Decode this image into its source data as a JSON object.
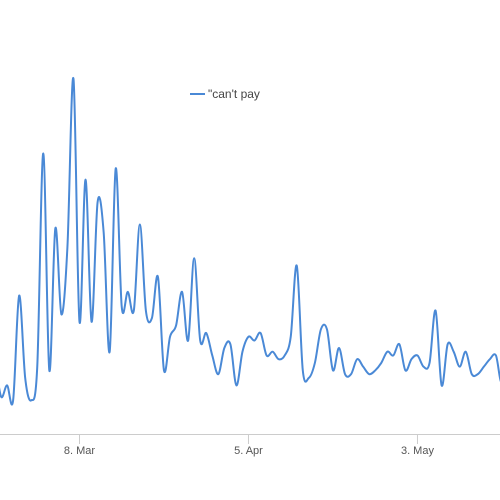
{
  "chart_data": {
    "type": "line",
    "title": "",
    "xlabel": "",
    "ylabel": "",
    "legend": {
      "position": "top-center"
    },
    "grid": false,
    "x_ticks": [
      "8. Mar",
      "5. Apr",
      "3. May"
    ],
    "x_range": [
      "2016-02-23",
      "2016-05-18"
    ],
    "y_range": [
      0,
      100
    ],
    "series": [
      {
        "name": "\"can't pay",
        "color": "#4a89d6",
        "x": [
          "2016-02-23",
          "2016-02-24",
          "2016-02-25",
          "2016-02-26",
          "2016-02-27",
          "2016-02-28",
          "2016-02-29",
          "2016-03-01",
          "2016-03-02",
          "2016-03-03",
          "2016-03-04",
          "2016-03-05",
          "2016-03-06",
          "2016-03-07",
          "2016-03-08",
          "2016-03-09",
          "2016-03-10",
          "2016-03-11",
          "2016-03-12",
          "2016-03-13",
          "2016-03-14",
          "2016-03-15",
          "2016-03-16",
          "2016-03-17",
          "2016-03-18",
          "2016-03-19",
          "2016-03-20",
          "2016-03-21",
          "2016-03-22",
          "2016-03-23",
          "2016-03-24",
          "2016-03-25",
          "2016-03-26",
          "2016-03-27",
          "2016-03-28",
          "2016-03-29",
          "2016-03-30",
          "2016-03-31",
          "2016-04-01",
          "2016-04-02",
          "2016-04-03",
          "2016-04-04",
          "2016-04-05",
          "2016-04-06",
          "2016-04-07",
          "2016-04-08",
          "2016-04-09",
          "2016-04-10",
          "2016-04-11",
          "2016-04-12",
          "2016-04-13",
          "2016-04-14",
          "2016-04-15",
          "2016-04-16",
          "2016-04-17",
          "2016-04-18",
          "2016-04-19",
          "2016-04-20",
          "2016-04-21",
          "2016-04-22",
          "2016-04-23",
          "2016-04-24",
          "2016-04-25",
          "2016-04-26",
          "2016-04-27",
          "2016-04-28",
          "2016-04-29",
          "2016-04-30",
          "2016-05-01",
          "2016-05-02",
          "2016-05-03",
          "2016-05-04",
          "2016-05-05",
          "2016-05-06",
          "2016-05-07",
          "2016-05-08",
          "2016-05-09",
          "2016-05-10",
          "2016-05-11",
          "2016-05-12",
          "2016-05-13",
          "2016-05-14",
          "2016-05-15",
          "2016-05-16",
          "2016-05-17",
          "2016-05-18"
        ],
        "values": [
          20,
          10,
          13,
          9,
          37,
          15,
          9,
          18,
          75,
          17,
          55,
          32,
          50,
          95,
          30,
          68,
          30,
          62,
          54,
          22,
          71,
          34,
          38,
          33,
          56,
          33,
          31,
          42,
          17,
          26,
          29,
          38,
          25,
          47,
          25,
          27,
          21,
          16,
          23,
          24,
          13,
          22,
          26,
          25,
          27,
          21,
          22,
          20,
          21,
          26,
          45,
          17,
          15,
          19,
          28,
          28,
          17,
          23,
          16,
          16,
          20,
          18,
          16,
          17,
          19,
          22,
          21,
          24,
          17,
          20,
          21,
          18,
          19,
          33,
          13,
          24,
          22,
          18,
          22,
          16,
          16,
          18,
          20,
          21,
          14,
          29
        ]
      }
    ]
  }
}
